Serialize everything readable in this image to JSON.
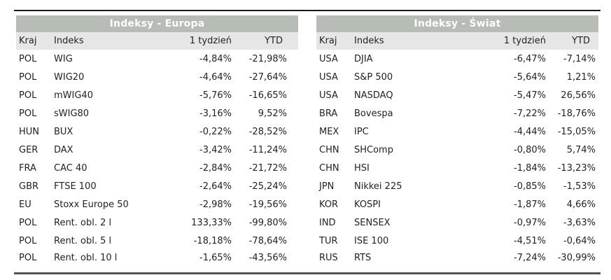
{
  "europe": {
    "title": "Indeksy - Europa",
    "headers": {
      "kraj": "Kraj",
      "indeks": "Indeks",
      "week": "1 tydzień",
      "ytd": "YTD"
    },
    "rows": [
      {
        "kraj": "POL",
        "indeks": "WIG",
        "week": "-4,84%",
        "ytd": "-21,98%"
      },
      {
        "kraj": "POL",
        "indeks": "WIG20",
        "week": "-4,64%",
        "ytd": "-27,64%"
      },
      {
        "kraj": "POL",
        "indeks": "mWIG40",
        "week": "-5,76%",
        "ytd": "-16,65%"
      },
      {
        "kraj": "POL",
        "indeks": "sWIG80",
        "week": "-3,16%",
        "ytd": "9,52%"
      },
      {
        "kraj": "HUN",
        "indeks": "BUX",
        "week": "-0,22%",
        "ytd": "-28,52%"
      },
      {
        "kraj": "GER",
        "indeks": "DAX",
        "week": "-3,42%",
        "ytd": "-11,24%"
      },
      {
        "kraj": "FRA",
        "indeks": "CAC 40",
        "week": "-2,84%",
        "ytd": "-21,72%"
      },
      {
        "kraj": "GBR",
        "indeks": "FTSE 100",
        "week": "-2,64%",
        "ytd": "-25,24%"
      },
      {
        "kraj": "EU",
        "indeks": "Stoxx Europe 50",
        "week": "-2,98%",
        "ytd": "-19,56%"
      },
      {
        "kraj": "POL",
        "indeks": "Rent. obl. 2 l",
        "week": "133,33%",
        "ytd": "-99,80%"
      },
      {
        "kraj": "POL",
        "indeks": "Rent. obl. 5 l",
        "week": "-18,18%",
        "ytd": "-78,64%"
      },
      {
        "kraj": "POL",
        "indeks": "Rent. obl. 10 l",
        "week": "-1,65%",
        "ytd": "-43,56%"
      }
    ]
  },
  "world": {
    "title": "Indeksy - Świat",
    "headers": {
      "kraj": "Kraj",
      "indeks": "Indeks",
      "week": "1 tydzień",
      "ytd": "YTD"
    },
    "rows": [
      {
        "kraj": "USA",
        "indeks": "DJIA",
        "week": "-6,47%",
        "ytd": "-7,14%"
      },
      {
        "kraj": "USA",
        "indeks": "S&P 500",
        "week": "-5,64%",
        "ytd": "1,21%"
      },
      {
        "kraj": "USA",
        "indeks": "NASDAQ",
        "week": "-5,47%",
        "ytd": "26,56%"
      },
      {
        "kraj": "BRA",
        "indeks": "Bovespa",
        "week": "-7,22%",
        "ytd": "-18,76%"
      },
      {
        "kraj": "MEX",
        "indeks": "IPC",
        "week": "-4,44%",
        "ytd": "-15,05%"
      },
      {
        "kraj": "CHN",
        "indeks": "SHComp",
        "week": "-0,80%",
        "ytd": "5,74%"
      },
      {
        "kraj": "CHN",
        "indeks": "HSI",
        "week": "-1,84%",
        "ytd": "-13,23%"
      },
      {
        "kraj": "JPN",
        "indeks": "Nikkei 225",
        "week": "-0,85%",
        "ytd": "-1,53%"
      },
      {
        "kraj": "KOR",
        "indeks": "KOSPI",
        "week": "-1,87%",
        "ytd": "4,66%"
      },
      {
        "kraj": "IND",
        "indeks": "SENSEX",
        "week": "-0,97%",
        "ytd": "-3,63%"
      },
      {
        "kraj": "TUR",
        "indeks": "ISE 100",
        "week": "-4,51%",
        "ytd": "-0,64%"
      },
      {
        "kraj": "RUS",
        "indeks": "RTS",
        "week": "-7,24%",
        "ytd": "-30,99%"
      }
    ]
  },
  "colors": {
    "title_band": "#b8bcb7",
    "header_band": "#e6e6e6",
    "rule": "#1a1a1a"
  }
}
